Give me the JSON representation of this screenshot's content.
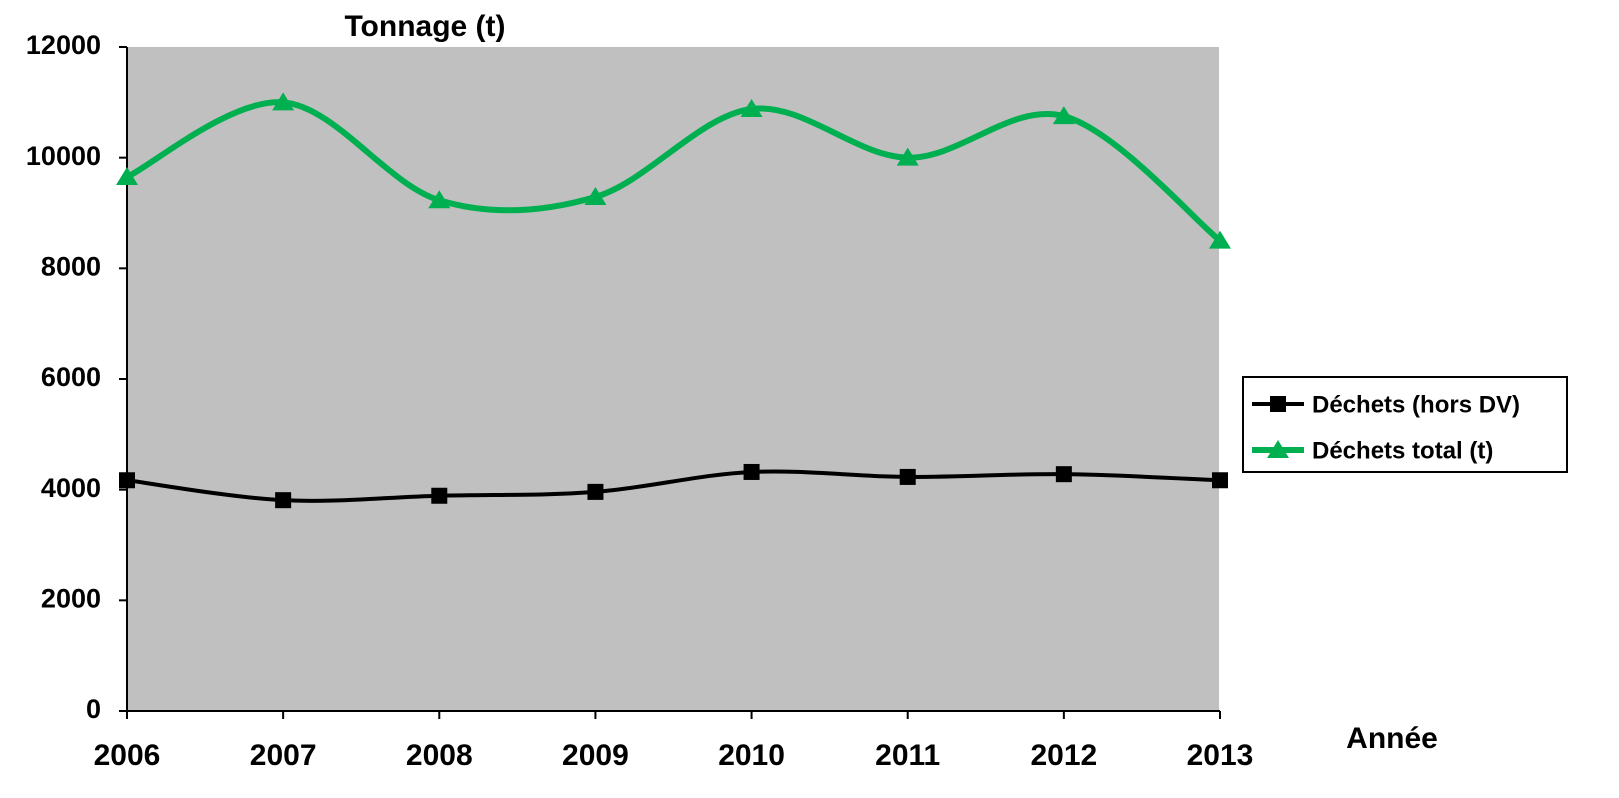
{
  "chart_data": {
    "type": "line",
    "title": "Tonnage (t)",
    "x_label": "Année",
    "categories": [
      "2006",
      "2007",
      "2008",
      "2009",
      "2010",
      "2011",
      "2012",
      "2013"
    ],
    "series": [
      {
        "name": "Déchets (hors DV)",
        "color": "#000000",
        "marker": "square",
        "values": [
          4170,
          3810,
          3890,
          3960,
          4320,
          4230,
          4280,
          4170
        ]
      },
      {
        "name": "Déchets total (t)",
        "color": "#00b050",
        "marker": "triangle",
        "values": [
          9650,
          11000,
          9230,
          9290,
          10880,
          10000,
          10750,
          8500
        ]
      }
    ],
    "ylim": [
      0,
      12000
    ],
    "yticks": [
      0,
      2000,
      4000,
      6000,
      8000,
      10000,
      12000
    ],
    "smooth": true,
    "grid": false,
    "legend": "right"
  }
}
